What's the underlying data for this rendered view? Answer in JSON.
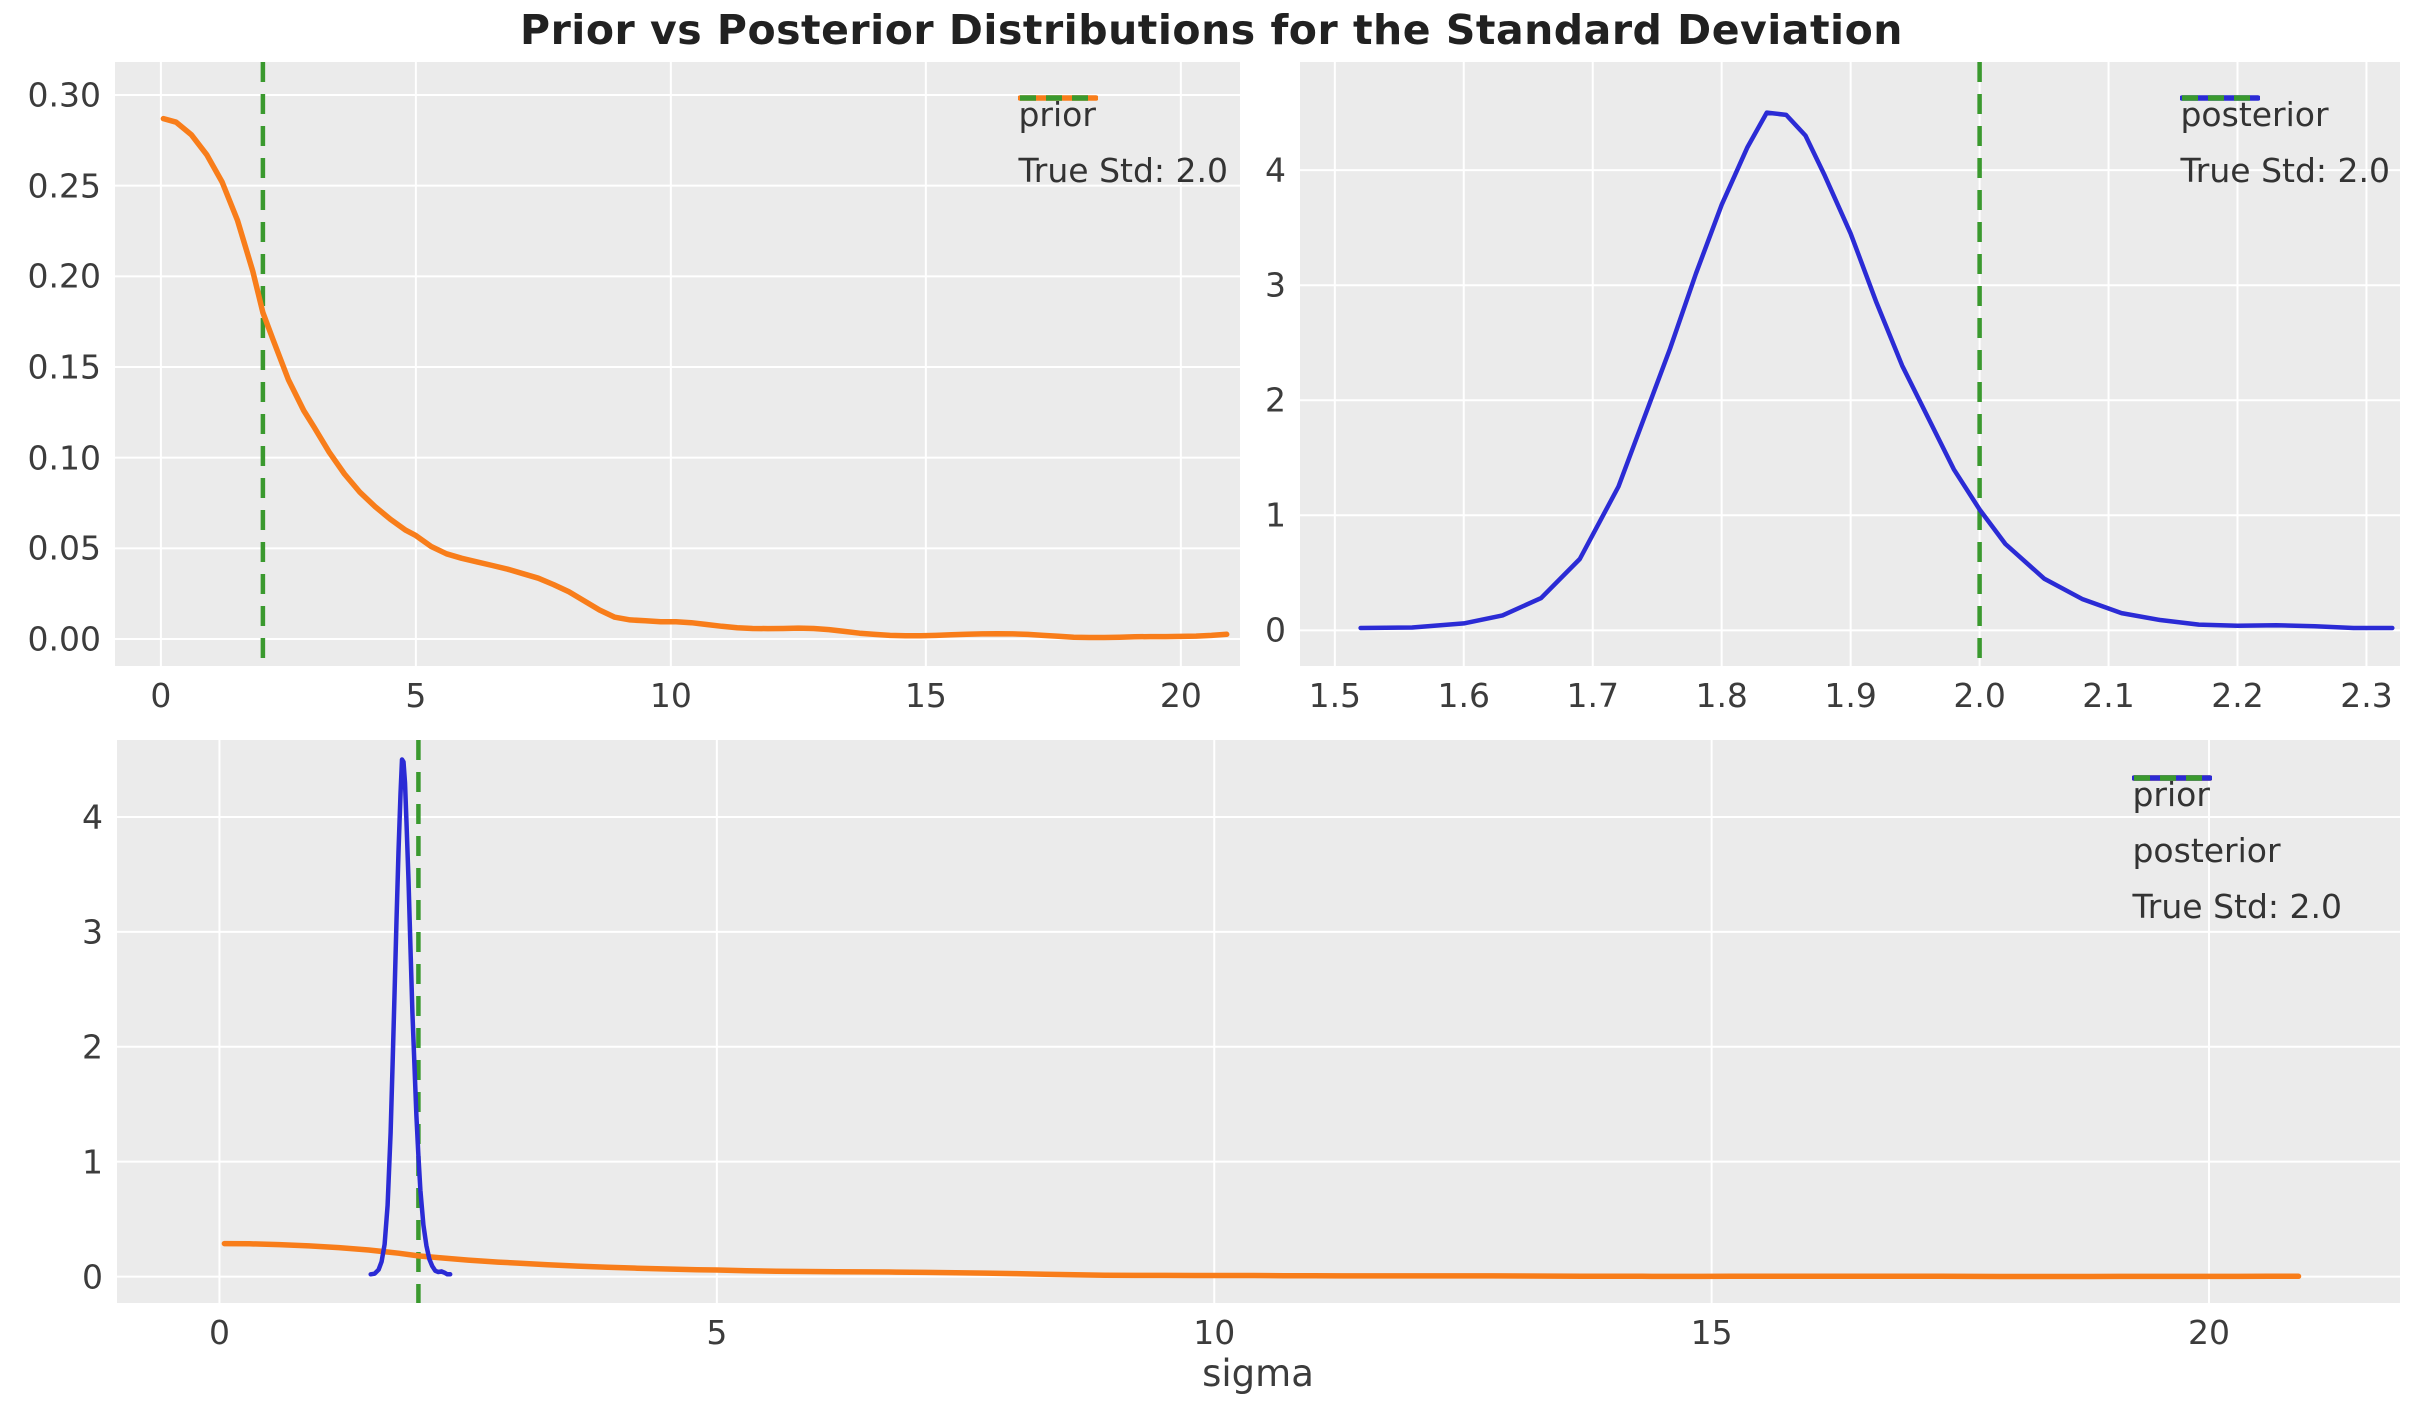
{
  "figure": {
    "title": "Prior vs Posterior Distributions for the Standard Deviation",
    "xlabel": "sigma"
  },
  "colors": {
    "prior": "#f87d1a",
    "posterior": "#2b2bd5",
    "true_std": "#3a992e",
    "axes_bg": "#ebebeb",
    "grid": "#ffffff",
    "tick_text": "#3c3c3c",
    "title_text": "#212121"
  },
  "series_library": {
    "prior": [
      [
        0.05,
        0.287
      ],
      [
        0.3,
        0.285
      ],
      [
        0.6,
        0.278
      ],
      [
        0.9,
        0.267
      ],
      [
        1.2,
        0.252
      ],
      [
        1.5,
        0.231
      ],
      [
        1.8,
        0.203
      ],
      [
        2.0,
        0.18
      ],
      [
        2.2,
        0.165
      ],
      [
        2.5,
        0.143
      ],
      [
        2.8,
        0.126
      ],
      [
        3.0,
        0.117
      ],
      [
        3.3,
        0.103
      ],
      [
        3.6,
        0.091
      ],
      [
        3.9,
        0.081
      ],
      [
        4.2,
        0.073
      ],
      [
        4.5,
        0.066
      ],
      [
        4.8,
        0.06
      ],
      [
        5.0,
        0.057
      ],
      [
        5.3,
        0.051
      ],
      [
        5.6,
        0.047
      ],
      [
        5.9,
        0.0445
      ],
      [
        6.2,
        0.0425
      ],
      [
        6.5,
        0.0405
      ],
      [
        6.8,
        0.0385
      ],
      [
        7.1,
        0.036
      ],
      [
        7.4,
        0.0335
      ],
      [
        7.7,
        0.03
      ],
      [
        8.0,
        0.026
      ],
      [
        8.3,
        0.021
      ],
      [
        8.6,
        0.016
      ],
      [
        8.9,
        0.012
      ],
      [
        9.2,
        0.0105
      ],
      [
        9.5,
        0.01
      ],
      [
        9.8,
        0.0095
      ],
      [
        10.1,
        0.0095
      ],
      [
        10.4,
        0.009
      ],
      [
        10.7,
        0.008
      ],
      [
        11.0,
        0.007
      ],
      [
        11.3,
        0.0062
      ],
      [
        11.6,
        0.0058
      ],
      [
        11.9,
        0.0057
      ],
      [
        12.2,
        0.0058
      ],
      [
        12.5,
        0.006
      ],
      [
        12.8,
        0.0058
      ],
      [
        13.1,
        0.0052
      ],
      [
        13.4,
        0.0042
      ],
      [
        13.7,
        0.0032
      ],
      [
        14.0,
        0.0025
      ],
      [
        14.3,
        0.002
      ],
      [
        14.6,
        0.0018
      ],
      [
        14.9,
        0.0018
      ],
      [
        15.2,
        0.002
      ],
      [
        15.5,
        0.0023
      ],
      [
        15.8,
        0.0026
      ],
      [
        16.1,
        0.0028
      ],
      [
        16.4,
        0.0029
      ],
      [
        16.7,
        0.0028
      ],
      [
        17.0,
        0.0025
      ],
      [
        17.3,
        0.002
      ],
      [
        17.6,
        0.0015
      ],
      [
        17.9,
        0.001
      ],
      [
        18.2,
        0.0008
      ],
      [
        18.5,
        0.0008
      ],
      [
        18.8,
        0.001
      ],
      [
        19.1,
        0.0012
      ],
      [
        19.4,
        0.0013
      ],
      [
        19.7,
        0.0013
      ],
      [
        20.0,
        0.0014
      ],
      [
        20.3,
        0.0016
      ],
      [
        20.6,
        0.002
      ],
      [
        20.9,
        0.0026
      ]
    ],
    "posterior": [
      [
        1.52,
        0.02
      ],
      [
        1.56,
        0.025
      ],
      [
        1.6,
        0.06
      ],
      [
        1.63,
        0.13
      ],
      [
        1.66,
        0.28
      ],
      [
        1.69,
        0.62
      ],
      [
        1.72,
        1.25
      ],
      [
        1.74,
        1.85
      ],
      [
        1.76,
        2.45
      ],
      [
        1.78,
        3.1
      ],
      [
        1.8,
        3.7
      ],
      [
        1.82,
        4.2
      ],
      [
        1.835,
        4.5
      ],
      [
        1.85,
        4.48
      ],
      [
        1.865,
        4.3
      ],
      [
        1.88,
        3.95
      ],
      [
        1.9,
        3.45
      ],
      [
        1.92,
        2.85
      ],
      [
        1.94,
        2.3
      ],
      [
        1.96,
        1.85
      ],
      [
        1.98,
        1.4
      ],
      [
        2.0,
        1.05
      ],
      [
        2.02,
        0.75
      ],
      [
        2.05,
        0.45
      ],
      [
        2.08,
        0.27
      ],
      [
        2.11,
        0.15
      ],
      [
        2.14,
        0.09
      ],
      [
        2.17,
        0.05
      ],
      [
        2.2,
        0.04
      ],
      [
        2.23,
        0.045
      ],
      [
        2.26,
        0.035
      ],
      [
        2.29,
        0.02
      ],
      [
        2.32,
        0.02
      ]
    ]
  },
  "chart_data": [
    {
      "type": "line",
      "name": "prior-subplot",
      "xlim": [
        -0.9,
        21.16
      ],
      "ylim": [
        -0.0149,
        0.3182
      ],
      "xticks": [
        {
          "v": 0,
          "label": "0"
        },
        {
          "v": 5,
          "label": "5"
        },
        {
          "v": 10,
          "label": "10"
        },
        {
          "v": 15,
          "label": "15"
        },
        {
          "v": 20,
          "label": "20"
        }
      ],
      "yticks": [
        {
          "v": 0.0,
          "label": "0.00"
        },
        {
          "v": 0.05,
          "label": "0.05"
        },
        {
          "v": 0.1,
          "label": "0.10"
        },
        {
          "v": 0.15,
          "label": "0.15"
        },
        {
          "v": 0.2,
          "label": "0.20"
        },
        {
          "v": 0.25,
          "label": "0.25"
        },
        {
          "v": 0.3,
          "label": "0.30"
        }
      ],
      "grid": true,
      "vline": {
        "x": 2.0,
        "color": "true_std",
        "width": 4.5,
        "dash": "20 12"
      },
      "series": [
        {
          "name": "prior",
          "color": "prior",
          "width": 5.5,
          "points_ref": "prior"
        }
      ],
      "legend": [
        {
          "label": "prior",
          "color": "prior",
          "dash": false
        },
        {
          "label": "True Std: 2.0",
          "color": "true_std",
          "dash": true
        }
      ]
    },
    {
      "type": "line",
      "name": "posterior-subplot",
      "xlim": [
        1.473,
        2.326
      ],
      "ylim": [
        -0.31,
        4.94
      ],
      "xticks": [
        {
          "v": 1.5,
          "label": "1.5"
        },
        {
          "v": 1.6,
          "label": "1.6"
        },
        {
          "v": 1.7,
          "label": "1.7"
        },
        {
          "v": 1.8,
          "label": "1.8"
        },
        {
          "v": 1.9,
          "label": "1.9"
        },
        {
          "v": 2.0,
          "label": "2.0"
        },
        {
          "v": 2.1,
          "label": "2.1"
        },
        {
          "v": 2.2,
          "label": "2.2"
        },
        {
          "v": 2.3,
          "label": "2.3"
        }
      ],
      "yticks": [
        {
          "v": 0,
          "label": "0"
        },
        {
          "v": 1,
          "label": "1"
        },
        {
          "v": 2,
          "label": "2"
        },
        {
          "v": 3,
          "label": "3"
        },
        {
          "v": 4,
          "label": "4"
        }
      ],
      "grid": true,
      "vline": {
        "x": 2.0,
        "color": "true_std",
        "width": 4.5,
        "dash": "20 12"
      },
      "series": [
        {
          "name": "posterior",
          "color": "posterior",
          "width": 4.5,
          "points_ref": "posterior"
        }
      ],
      "legend": [
        {
          "label": "posterior",
          "color": "posterior",
          "dash": false
        },
        {
          "label": "True Std: 2.0",
          "color": "true_std",
          "dash": true
        }
      ]
    },
    {
      "type": "line",
      "name": "combined-subplot",
      "xlim": [
        -1.03,
        21.92
      ],
      "ylim": [
        -0.23,
        4.67
      ],
      "xticks": [
        {
          "v": 0,
          "label": "0"
        },
        {
          "v": 5,
          "label": "5"
        },
        {
          "v": 10,
          "label": "10"
        },
        {
          "v": 15,
          "label": "15"
        },
        {
          "v": 20,
          "label": "20"
        }
      ],
      "yticks": [
        {
          "v": 0,
          "label": "0"
        },
        {
          "v": 1,
          "label": "1"
        },
        {
          "v": 2,
          "label": "2"
        },
        {
          "v": 3,
          "label": "3"
        },
        {
          "v": 4,
          "label": "4"
        }
      ],
      "grid": true,
      "vline": {
        "x": 2.0,
        "color": "true_std",
        "width": 4.5,
        "dash": "20 12"
      },
      "series": [
        {
          "name": "prior",
          "color": "prior",
          "width": 5.5,
          "points_ref": "prior"
        },
        {
          "name": "posterior",
          "color": "posterior",
          "width": 4.5,
          "points_ref": "posterior"
        }
      ],
      "legend": [
        {
          "label": "prior",
          "color": "prior",
          "dash": false
        },
        {
          "label": "posterior",
          "color": "posterior",
          "dash": false
        },
        {
          "label": "True Std: 2.0",
          "color": "true_std",
          "dash": true
        }
      ]
    }
  ]
}
